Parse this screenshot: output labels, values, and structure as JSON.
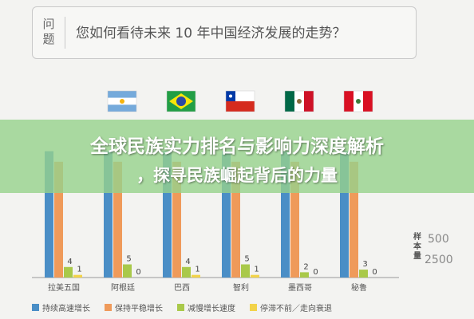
{
  "question": {
    "label": "问\n题",
    "text": "您如何看待未来 10 年中国经济发展的走势？"
  },
  "banner": {
    "line1": "全球民族实力排名与影响力深度解析",
    "line2": "，探寻民族崛起背后的力量"
  },
  "sample": {
    "label": "样本量",
    "total": "500",
    "china": "2500"
  },
  "colors": {
    "sustained": "#4a8ec6",
    "steady": "#ef9a5a",
    "slowdown": "#a9c94a",
    "stagnant": "#f2d34a"
  },
  "chart_data": {
    "type": "bar",
    "categories": [
      "拉美五国",
      "阿根廷",
      "巴西",
      "智利",
      "墨西哥",
      "秘鲁"
    ],
    "series": [
      {
        "name": "持续高速增长",
        "values": [
          48,
          48,
          48,
          48,
          48,
          48
        ]
      },
      {
        "name": "保持平稳增长",
        "values": [
          44,
          44,
          44,
          44,
          44,
          44
        ]
      },
      {
        "name": "减慢增长速度",
        "values": [
          4,
          5,
          4,
          5,
          2,
          3
        ]
      },
      {
        "name": "停滞不前／走向衰退",
        "values": [
          1,
          0,
          1,
          1,
          0,
          0
        ]
      }
    ],
    "data_labels": {
      "减慢增长速度": [
        "4",
        "5",
        "4",
        "5",
        "2",
        "3"
      ],
      "停滞不前／走向衰退": [
        "1",
        "0",
        "1",
        "1",
        "0",
        "0"
      ]
    },
    "flags": [
      "argentina-flag",
      "brazil-flag",
      "chile-flag",
      "mexico-flag",
      "peru-flag"
    ],
    "ylim": [
      0,
      60
    ],
    "legend_position": "bottom"
  }
}
